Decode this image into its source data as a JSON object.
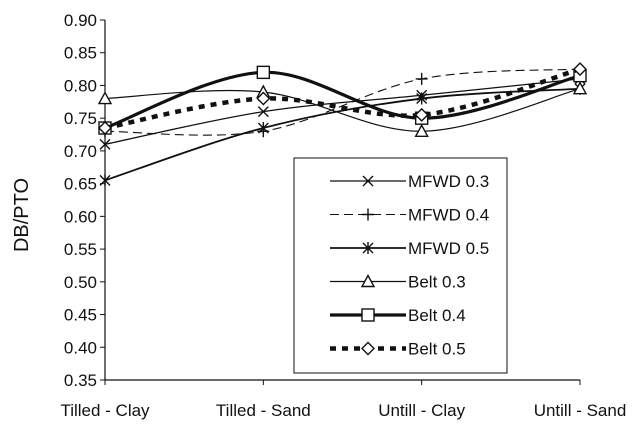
{
  "chart_data": {
    "type": "line",
    "title": "",
    "xlabel": "",
    "ylabel": "DB/PTO",
    "categories": [
      "Tilled - Clay",
      "Tilled - Sand",
      "Untill - Clay",
      "Untill - Sand"
    ],
    "ylim": [
      0.35,
      0.9
    ],
    "yticks": [
      "0.35",
      "0.40",
      "0.45",
      "0.50",
      "0.55",
      "0.60",
      "0.65",
      "0.70",
      "0.75",
      "0.80",
      "0.85",
      "0.90"
    ],
    "grid": false,
    "legend_position": "lower-right",
    "series": [
      {
        "name": "MFWD 0.3",
        "marker": "x",
        "dash": "solid",
        "width": 1.3,
        "values": [
          0.71,
          0.76,
          0.785,
          0.81
        ]
      },
      {
        "name": "MFWD 0.4",
        "marker": "plus",
        "dash": "dashed",
        "width": 1.1,
        "values": [
          0.73,
          0.73,
          0.81,
          0.825
        ]
      },
      {
        "name": "MFWD 0.5",
        "marker": "asterisk",
        "dash": "solid",
        "width": 1.8,
        "values": [
          0.655,
          0.735,
          0.78,
          0.795
        ]
      },
      {
        "name": "Belt 0.3",
        "marker": "triangle",
        "dash": "solid",
        "width": 1.2,
        "values": [
          0.78,
          0.79,
          0.73,
          0.795
        ]
      },
      {
        "name": "Belt 0.4",
        "marker": "square",
        "dash": "solid",
        "width": 3.2,
        "values": [
          0.735,
          0.82,
          0.75,
          0.815
        ]
      },
      {
        "name": "Belt 0.5",
        "marker": "diamond",
        "dash": "dotted",
        "width": 4.5,
        "values": [
          0.735,
          0.78,
          0.755,
          0.825
        ]
      }
    ]
  }
}
